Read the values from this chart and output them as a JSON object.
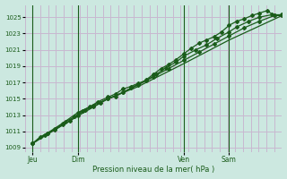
{
  "bg_color": "#cce8e0",
  "grid_color": "#c8b8d0",
  "line_color": "#1a5c1a",
  "ylabel_text": "Pression niveau de la mer( hPa )",
  "yticks": [
    1009,
    1011,
    1013,
    1015,
    1017,
    1019,
    1021,
    1023,
    1025
  ],
  "ylim": [
    1008.5,
    1026.5
  ],
  "xlim": [
    -0.5,
    16.5
  ],
  "day_ticks": [
    0.0,
    3.0,
    10.0,
    13.0
  ],
  "day_labels": [
    "Jeu",
    "Dim",
    "Ven",
    "Sam"
  ],
  "line1_x": [
    0,
    0.5,
    1.0,
    1.5,
    2.0,
    2.5,
    3.0,
    3.5,
    4.0,
    4.5,
    5.0,
    5.5,
    6.0,
    6.5,
    7.0,
    7.5,
    8.0,
    8.5,
    9.0,
    9.5,
    10.0,
    10.5,
    11.0,
    11.5,
    12.0,
    12.5,
    13.0,
    13.5,
    14.0,
    14.5,
    15.0,
    15.5,
    16.0,
    16.5
  ],
  "line1_y": [
    1009.5,
    1010.3,
    1010.8,
    1011.2,
    1011.8,
    1012.3,
    1013.0,
    1013.6,
    1014.0,
    1014.5,
    1015.0,
    1015.3,
    1015.8,
    1016.3,
    1016.8,
    1017.3,
    1018.0,
    1018.7,
    1019.2,
    1019.8,
    1020.5,
    1021.2,
    1021.8,
    1022.2,
    1022.6,
    1023.2,
    1024.0,
    1024.5,
    1024.8,
    1025.2,
    1025.5,
    1025.8,
    1025.2,
    1025.2
  ],
  "line2_x": [
    0,
    0.8,
    1.5,
    2.2,
    2.8,
    3.3,
    3.8,
    4.3,
    5.0,
    5.5,
    6.0,
    6.5,
    7.0,
    7.5,
    8.2,
    8.8,
    9.5,
    10.0,
    10.8,
    11.5,
    12.2,
    13.0,
    13.5,
    14.3,
    15.0,
    15.8,
    16.5
  ],
  "line2_y": [
    1009.5,
    1010.5,
    1011.3,
    1012.2,
    1012.8,
    1013.5,
    1014.0,
    1014.6,
    1015.2,
    1015.6,
    1016.2,
    1016.5,
    1016.9,
    1017.2,
    1018.0,
    1018.8,
    1019.5,
    1020.2,
    1021.0,
    1021.6,
    1022.4,
    1023.2,
    1023.8,
    1024.5,
    1025.0,
    1025.3,
    1025.3
  ],
  "line3_x": [
    0,
    1.0,
    2.0,
    3.0,
    4.0,
    5.0,
    6.0,
    7.0,
    8.0,
    9.0,
    10.0,
    11.0,
    12.0,
    13.0,
    14.0,
    15.0,
    16.0
  ],
  "line3_y": [
    1009.5,
    1010.8,
    1012.0,
    1013.3,
    1014.2,
    1015.0,
    1015.8,
    1016.7,
    1017.7,
    1018.7,
    1019.7,
    1020.7,
    1021.7,
    1022.7,
    1023.7,
    1024.5,
    1025.2
  ],
  "line4_x": [
    0,
    1.5,
    3.3,
    5.0,
    7.0,
    10.0,
    13.0,
    16.5
  ],
  "line4_y": [
    1009.5,
    1011.2,
    1013.2,
    1015.0,
    1016.5,
    1019.3,
    1022.2,
    1025.2
  ]
}
